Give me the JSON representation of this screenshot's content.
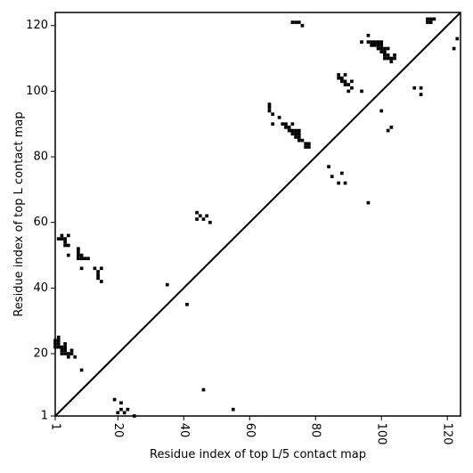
{
  "chart_data": {
    "type": "heatmap",
    "title": "",
    "xlabel": "Residue index of top L/5 contact map",
    "ylabel": "Residue index of top L contact map",
    "xlim": [
      1,
      124
    ],
    "ylim": [
      1,
      124
    ],
    "x_ticks": [
      1,
      20,
      40,
      60,
      80,
      100,
      120
    ],
    "y_ticks": [
      1,
      20,
      40,
      60,
      80,
      100,
      120
    ],
    "x_tick_rotation_deg": -90,
    "diagonal": true,
    "grid": false,
    "cell_color": "#000000",
    "contacts": [
      [
        1,
        22
      ],
      [
        1,
        23
      ],
      [
        1,
        24
      ],
      [
        2,
        22
      ],
      [
        2,
        23
      ],
      [
        2,
        24
      ],
      [
        2,
        25
      ],
      [
        3,
        20
      ],
      [
        3,
        21
      ],
      [
        3,
        22
      ],
      [
        4,
        20
      ],
      [
        4,
        21
      ],
      [
        4,
        22
      ],
      [
        4,
        23
      ],
      [
        5,
        19
      ],
      [
        5,
        20
      ],
      [
        6,
        20
      ],
      [
        6,
        21
      ],
      [
        7,
        19
      ],
      [
        9,
        15
      ],
      [
        2,
        55
      ],
      [
        3,
        55
      ],
      [
        3,
        56
      ],
      [
        4,
        54
      ],
      [
        4,
        55
      ],
      [
        4,
        53
      ],
      [
        5,
        53
      ],
      [
        5,
        56
      ],
      [
        5,
        50
      ],
      [
        8,
        49
      ],
      [
        8,
        50
      ],
      [
        8,
        51
      ],
      [
        8,
        52
      ],
      [
        9,
        49
      ],
      [
        9,
        50
      ],
      [
        10,
        49
      ],
      [
        11,
        49
      ],
      [
        9,
        46
      ],
      [
        13,
        46
      ],
      [
        14,
        43
      ],
      [
        14,
        44
      ],
      [
        14,
        45
      ],
      [
        15,
        42
      ],
      [
        15,
        46
      ],
      [
        19,
        6
      ],
      [
        20,
        2
      ],
      [
        21,
        3
      ],
      [
        21,
        5
      ],
      [
        22,
        2
      ],
      [
        23,
        3
      ],
      [
        25,
        1
      ],
      [
        35,
        41
      ],
      [
        41,
        35
      ],
      [
        44,
        61
      ],
      [
        44,
        63
      ],
      [
        45,
        62
      ],
      [
        46,
        61
      ],
      [
        47,
        62
      ],
      [
        48,
        60
      ],
      [
        46,
        9
      ],
      [
        55,
        3
      ],
      [
        66,
        94
      ],
      [
        66,
        95
      ],
      [
        66,
        96
      ],
      [
        67,
        93
      ],
      [
        67,
        90
      ],
      [
        69,
        92
      ],
      [
        70,
        90
      ],
      [
        71,
        89
      ],
      [
        71,
        90
      ],
      [
        72,
        88
      ],
      [
        72,
        89
      ],
      [
        73,
        87
      ],
      [
        73,
        88
      ],
      [
        73,
        90
      ],
      [
        74,
        86
      ],
      [
        74,
        87
      ],
      [
        74,
        88
      ],
      [
        75,
        85
      ],
      [
        75,
        86
      ],
      [
        75,
        87
      ],
      [
        75,
        88
      ],
      [
        76,
        85
      ],
      [
        77,
        83
      ],
      [
        77,
        84
      ],
      [
        78,
        83
      ],
      [
        78,
        84
      ],
      [
        73,
        121
      ],
      [
        74,
        121
      ],
      [
        75,
        121
      ],
      [
        76,
        120
      ],
      [
        84,
        77
      ],
      [
        85,
        74
      ],
      [
        87,
        72
      ],
      [
        88,
        75
      ],
      [
        89,
        72
      ],
      [
        87,
        104
      ],
      [
        87,
        105
      ],
      [
        88,
        103
      ],
      [
        88,
        104
      ],
      [
        89,
        102
      ],
      [
        89,
        103
      ],
      [
        89,
        105
      ],
      [
        90,
        102
      ],
      [
        90,
        100
      ],
      [
        91,
        101
      ],
      [
        91,
        103
      ],
      [
        94,
        100
      ],
      [
        96,
        66
      ],
      [
        94,
        115
      ],
      [
        96,
        115
      ],
      [
        96,
        117
      ],
      [
        97,
        114
      ],
      [
        97,
        115
      ],
      [
        98,
        114
      ],
      [
        98,
        115
      ],
      [
        99,
        113
      ],
      [
        99,
        114
      ],
      [
        99,
        115
      ],
      [
        100,
        112
      ],
      [
        100,
        113
      ],
      [
        100,
        114
      ],
      [
        100,
        115
      ],
      [
        100,
        94
      ],
      [
        101,
        111
      ],
      [
        101,
        112
      ],
      [
        101,
        113
      ],
      [
        101,
        110
      ],
      [
        102,
        110
      ],
      [
        102,
        111
      ],
      [
        102,
        113
      ],
      [
        102,
        88
      ],
      [
        103,
        109
      ],
      [
        103,
        110
      ],
      [
        103,
        89
      ],
      [
        104,
        110
      ],
      [
        104,
        111
      ],
      [
        110,
        101
      ],
      [
        112,
        99
      ],
      [
        112,
        101
      ],
      [
        114,
        121
      ],
      [
        114,
        122
      ],
      [
        115,
        121
      ],
      [
        115,
        122
      ],
      [
        116,
        122
      ],
      [
        122,
        113
      ],
      [
        123,
        116
      ]
    ]
  }
}
